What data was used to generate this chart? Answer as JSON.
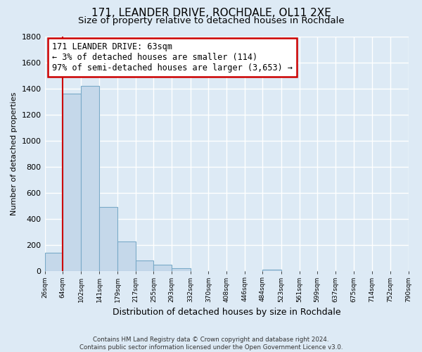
{
  "title": "171, LEANDER DRIVE, ROCHDALE, OL11 2XE",
  "subtitle": "Size of property relative to detached houses in Rochdale",
  "xlabel": "Distribution of detached houses by size in Rochdale",
  "ylabel": "Number of detached properties",
  "bar_edges": [
    26,
    64,
    102,
    141,
    179,
    217,
    255,
    293,
    332,
    370,
    408,
    446,
    484,
    523,
    561,
    599,
    637,
    675,
    714,
    752,
    790
  ],
  "bar_heights": [
    140,
    1360,
    1420,
    490,
    230,
    85,
    50,
    25,
    0,
    0,
    0,
    0,
    15,
    0,
    0,
    0,
    0,
    0,
    0,
    0
  ],
  "bar_color": "#c5d8ea",
  "bar_edgecolor": "#7aaac8",
  "property_line_x": 63,
  "property_line_color": "#cc0000",
  "annotation_text": "171 LEANDER DRIVE: 63sqm\n← 3% of detached houses are smaller (114)\n97% of semi-detached houses are larger (3,653) →",
  "annotation_box_edgecolor": "#cc0000",
  "annotation_box_facecolor": "#ffffff",
  "ylim": [
    0,
    1800
  ],
  "yticks": [
    0,
    200,
    400,
    600,
    800,
    1000,
    1200,
    1400,
    1600,
    1800
  ],
  "tick_labels": [
    "26sqm",
    "64sqm",
    "102sqm",
    "141sqm",
    "179sqm",
    "217sqm",
    "255sqm",
    "293sqm",
    "332sqm",
    "370sqm",
    "408sqm",
    "446sqm",
    "484sqm",
    "523sqm",
    "561sqm",
    "599sqm",
    "637sqm",
    "675sqm",
    "714sqm",
    "752sqm",
    "790sqm"
  ],
  "footer": "Contains HM Land Registry data © Crown copyright and database right 2024.\nContains public sector information licensed under the Open Government Licence v3.0.",
  "bg_color": "#ddeaf5",
  "grid_color": "#ffffff",
  "title_fontsize": 11,
  "subtitle_fontsize": 9.5,
  "annotation_fontsize": 8.5,
  "ylabel_fontsize": 8,
  "xlabel_fontsize": 9
}
